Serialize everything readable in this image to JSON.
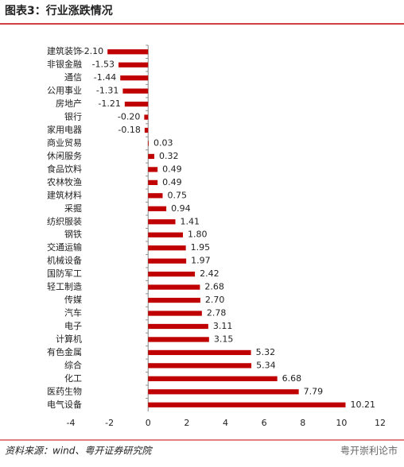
{
  "chart_data": {
    "type": "barh",
    "title": "图表3：行业涨跌情况",
    "categories": [
      "建筑装饰",
      "非银金融",
      "通信",
      "公用事业",
      "房地产",
      "银行",
      "家用电器",
      "商业贸易",
      "休闲服务",
      "食品饮料",
      "农林牧渔",
      "建筑材料",
      "采掘",
      "纺织服装",
      "钢铁",
      "交通运输",
      "机械设备",
      "国防军工",
      "轻工制造",
      "传媒",
      "汽车",
      "电子",
      "计算机",
      "有色金属",
      "综合",
      "化工",
      "医药生物",
      "电气设备"
    ],
    "values": [
      -2.1,
      -1.53,
      -1.44,
      -1.31,
      -1.21,
      -0.2,
      -0.18,
      0.03,
      0.32,
      0.49,
      0.49,
      0.75,
      0.94,
      1.41,
      1.8,
      1.95,
      1.97,
      2.42,
      2.68,
      2.7,
      2.78,
      3.11,
      3.15,
      5.32,
      5.34,
      6.68,
      7.79,
      10.21
    ],
    "value_labels": [
      "-2.10",
      "-1.53",
      "-1.44",
      "-1.31",
      "-1.21",
      "-0.20",
      "-0.18",
      "0.03",
      "0.32",
      "0.49",
      "0.49",
      "0.75",
      "0.94",
      "1.41",
      "1.80",
      "1.95",
      "1.97",
      "2.42",
      "2.68",
      "2.70",
      "2.78",
      "3.11",
      "3.15",
      "5.32",
      "5.34",
      "6.68",
      "7.79",
      "10.21"
    ],
    "color": "#c00000",
    "xlim": [
      -4,
      12
    ],
    "xticks": [
      -4,
      -2,
      0,
      2,
      4,
      6,
      8,
      10,
      12
    ],
    "source": "资料来源：wind、粤开证券研究院",
    "watermark": "粤开崇利论市"
  }
}
